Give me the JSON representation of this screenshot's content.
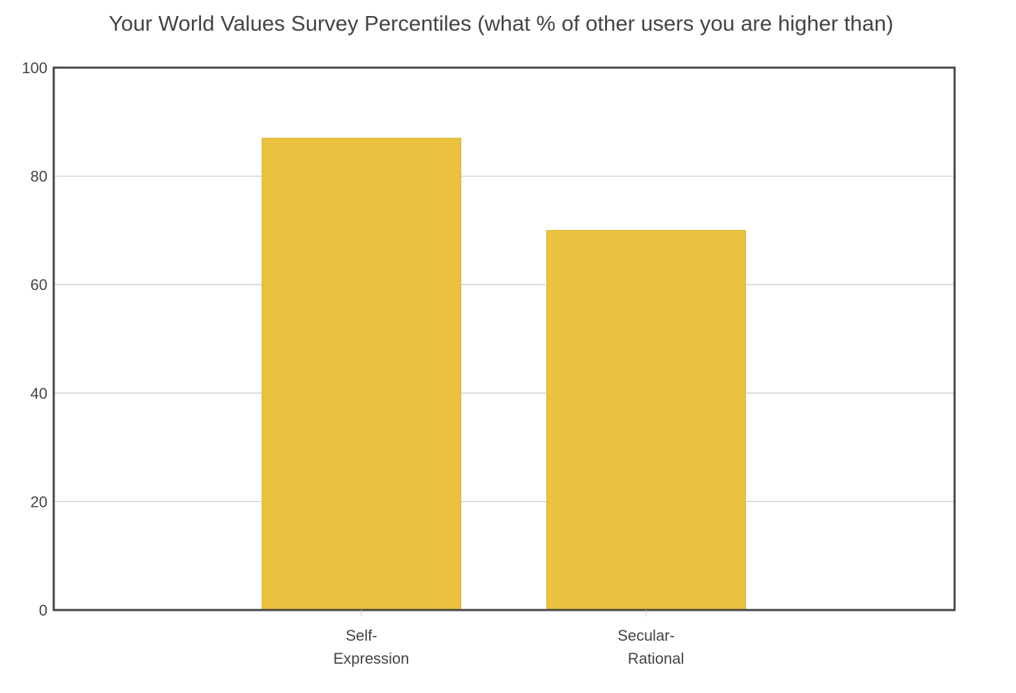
{
  "chart_data": {
    "type": "bar",
    "title": "Your World Values Survey Percentiles (what % of other users you are higher than)",
    "categories": [
      [
        "Self-",
        "Expression"
      ],
      [
        "Secular-",
        "Rational"
      ]
    ],
    "values": [
      87,
      70
    ],
    "ylim": [
      0,
      100
    ],
    "yticks": [
      0,
      20,
      40,
      60,
      80,
      100
    ],
    "xlabel": "",
    "ylabel": "",
    "grid": true,
    "legend": "none",
    "colors": {
      "bar": "#EBC240",
      "bar_edge": "#D9AE2C",
      "grid": "#CCCCCC",
      "frame": "#444444",
      "text": "#444444"
    }
  }
}
